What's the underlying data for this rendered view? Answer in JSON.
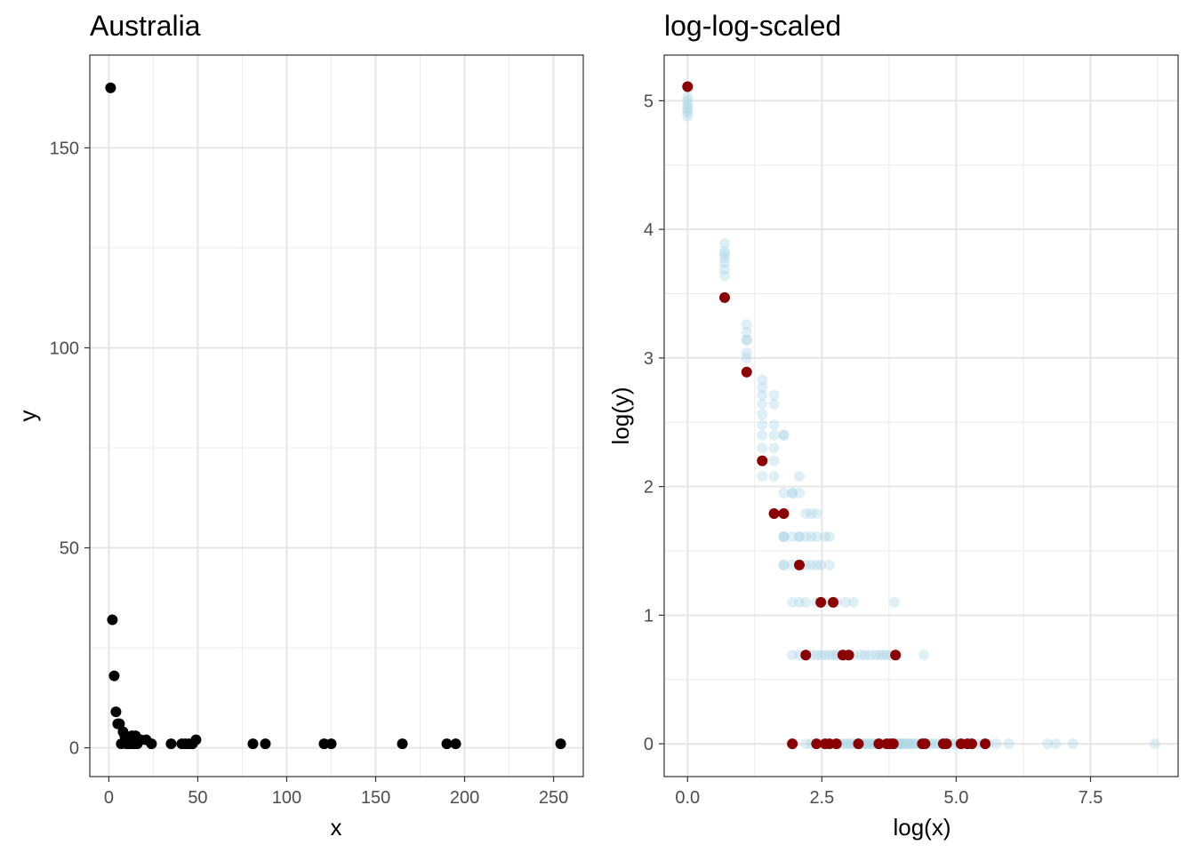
{
  "chart_data": [
    {
      "type": "scatter",
      "title": "Australia",
      "xlabel": "x",
      "ylabel": "y",
      "xlim": [
        -10.7,
        266.7
      ],
      "ylim": [
        -7.2,
        173.2
      ],
      "x_ticks": [
        0,
        50,
        100,
        150,
        200,
        250
      ],
      "x_tick_labels": [
        "0",
        "50",
        "100",
        "150",
        "200",
        "250"
      ],
      "y_ticks": [
        0,
        50,
        100,
        150
      ],
      "y_tick_labels": [
        "0",
        "50",
        "100",
        "150"
      ],
      "grid": true,
      "point_color": "#000000",
      "series": [
        {
          "x": [
            1,
            2,
            3,
            4,
            5,
            6,
            7,
            8,
            9,
            10,
            11,
            11,
            12,
            13,
            14,
            15,
            16,
            18,
            21,
            24,
            35,
            41,
            43,
            45,
            47,
            49,
            81,
            88,
            121,
            125,
            165,
            190,
            195,
            254
          ],
          "y": [
            165,
            32,
            18,
            9,
            6,
            6,
            1,
            4,
            3,
            1,
            2,
            1,
            1,
            3,
            1,
            3,
            1,
            2,
            2,
            1,
            1,
            1,
            1,
            1,
            1,
            2,
            1,
            1,
            1,
            1,
            1,
            1,
            1,
            1
          ]
        }
      ]
    },
    {
      "type": "scatter",
      "title": "log-log-scaled",
      "xlabel": "log(x)",
      "ylabel": "log(y)",
      "xlim": [
        -0.435,
        9.13
      ],
      "ylim": [
        -0.255,
        5.355
      ],
      "x_ticks": [
        0,
        2.5,
        5,
        7.5
      ],
      "x_tick_labels": [
        "0.0",
        "2.5",
        "5.0",
        "7.5"
      ],
      "y_ticks": [
        0,
        1,
        2,
        3,
        4,
        5
      ],
      "y_tick_labels": [
        "0",
        "1",
        "2",
        "3",
        "4",
        "5"
      ],
      "grid": true,
      "series": [
        {
          "color": "#add8e6",
          "opacity": 0.4,
          "x": [
            0,
            0,
            0,
            0,
            0,
            0,
            0,
            0.69,
            0.69,
            0.69,
            0.69,
            0.69,
            0.69,
            0.69,
            1.1,
            1.1,
            1.1,
            1.1,
            1.1,
            1.1,
            1.39,
            1.39,
            1.39,
            1.39,
            1.39,
            1.39,
            1.39,
            1.39,
            1.39,
            1.39,
            1.61,
            1.61,
            1.61,
            1.61,
            1.61,
            1.61,
            1.61,
            1.79,
            1.79,
            1.95,
            1.95,
            1.79,
            2.08,
            2.08,
            2.2,
            2.3,
            2.4,
            1.79,
            1.79,
            1.79,
            1.95,
            2.08,
            2.08,
            2.2,
            2.3,
            2.4,
            2.56,
            2.64,
            1.79,
            1.79,
            1.95,
            2.08,
            2.2,
            2.3,
            2.4,
            2.48,
            2.64,
            1.95,
            2.08,
            2.2,
            2.4,
            2.56,
            2.77,
            2.94,
            3.09,
            3.85,
            1.95,
            2.08,
            2.2,
            2.3,
            2.4,
            2.48,
            2.56,
            2.64,
            2.71,
            2.77,
            2.83,
            2.89,
            2.94,
            3.0,
            3.09,
            3.22,
            3.3,
            3.4,
            3.5,
            3.58,
            3.64,
            3.71,
            3.78,
            4.4,
            2.2,
            2.3,
            2.4,
            2.48,
            2.56,
            2.64,
            2.71,
            2.77,
            2.83,
            2.89,
            2.94,
            3.0,
            3.04,
            3.09,
            3.14,
            3.18,
            3.22,
            3.26,
            3.3,
            3.33,
            3.37,
            3.4,
            3.43,
            3.47,
            3.5,
            3.53,
            3.56,
            3.58,
            3.61,
            3.64,
            3.66,
            3.69,
            3.71,
            3.74,
            3.76,
            3.78,
            3.81,
            3.83,
            3.85,
            3.87,
            3.89,
            3.91,
            3.93,
            3.95,
            3.97,
            4.0,
            4.03,
            4.06,
            4.09,
            4.13,
            4.17,
            4.2,
            4.25,
            4.3,
            4.36,
            4.42,
            4.48,
            4.54,
            4.61,
            4.68,
            4.75,
            4.82,
            4.9,
            4.97,
            5.05,
            5.13,
            5.2,
            5.29,
            5.38,
            5.48,
            5.6,
            5.75,
            5.98,
            6.7,
            6.85,
            7.17,
            8.7
          ],
          "y": [
            4.88,
            4.91,
            4.93,
            4.95,
            4.97,
            5.0,
            5.03,
            3.64,
            3.69,
            3.74,
            3.78,
            3.81,
            3.83,
            3.89,
            3.0,
            3.04,
            3.14,
            3.14,
            3.2,
            3.26,
            2.08,
            2.2,
            2.3,
            2.4,
            2.48,
            2.56,
            2.64,
            2.71,
            2.77,
            2.83,
            2.08,
            2.2,
            2.3,
            2.4,
            2.48,
            2.64,
            2.71,
            2.4,
            2.4,
            1.95,
            1.95,
            1.95,
            2.08,
            1.95,
            1.79,
            1.79,
            1.79,
            1.61,
            1.61,
            1.61,
            1.61,
            1.61,
            1.61,
            1.61,
            1.61,
            1.61,
            1.61,
            1.61,
            1.39,
            1.39,
            1.39,
            1.39,
            1.39,
            1.39,
            1.39,
            1.39,
            1.39,
            1.1,
            1.1,
            1.1,
            1.1,
            1.1,
            1.1,
            1.1,
            1.1,
            1.1,
            0.69,
            0.69,
            0.69,
            0.69,
            0.69,
            0.69,
            0.69,
            0.69,
            0.69,
            0.69,
            0.69,
            0.69,
            0.69,
            0.69,
            0.69,
            0.69,
            0.69,
            0.69,
            0.69,
            0.69,
            0.69,
            0.69,
            0.69,
            0.69,
            0,
            0,
            0,
            0,
            0,
            0,
            0,
            0,
            0,
            0,
            0,
            0,
            0,
            0,
            0,
            0,
            0,
            0,
            0,
            0,
            0,
            0,
            0,
            0,
            0,
            0,
            0,
            0,
            0,
            0,
            0,
            0,
            0,
            0,
            0,
            0,
            0,
            0,
            0,
            0,
            0,
            0,
            0,
            0,
            0,
            0,
            0,
            0,
            0,
            0,
            0,
            0,
            0,
            0,
            0,
            0,
            0,
            0,
            0,
            0,
            0,
            0,
            0,
            0,
            0,
            0,
            0,
            0,
            0,
            0,
            0,
            0,
            0,
            0,
            0,
            0,
            0
          ]
        },
        {
          "color": "#8b0000",
          "opacity": 1,
          "x": [
            0,
            0.69,
            1.1,
            1.39,
            1.61,
            1.79,
            2.08,
            2.48,
            2.71,
            2.2,
            2.89,
            3.0,
            3.87,
            1.95,
            2.4,
            2.56,
            2.64,
            2.77,
            3.18,
            3.56,
            3.71,
            3.78,
            3.83,
            4.37,
            4.42,
            4.76,
            4.82,
            5.09,
            5.21,
            5.29,
            5.54
          ],
          "y": [
            5.11,
            3.47,
            2.89,
            2.2,
            1.79,
            1.79,
            1.39,
            1.1,
            1.1,
            0.69,
            0.69,
            0.69,
            0.69,
            0,
            0,
            0,
            0,
            0,
            0,
            0,
            0,
            0,
            0,
            0,
            0,
            0,
            0,
            0,
            0,
            0,
            0
          ]
        }
      ]
    }
  ]
}
